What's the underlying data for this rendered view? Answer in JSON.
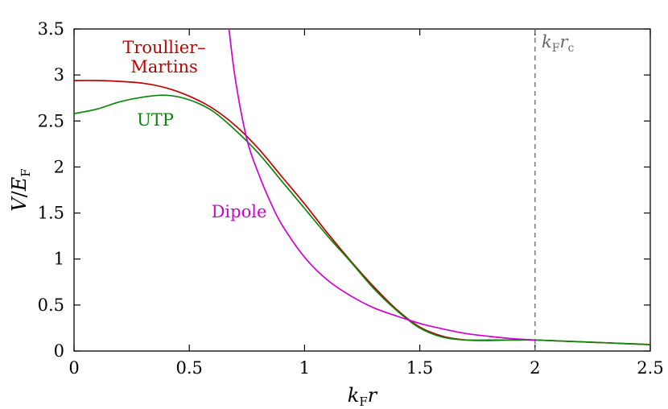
{
  "chart_data": {
    "type": "line",
    "title": "",
    "xlabel": {
      "main": "k",
      "sub": "F",
      "tail": "r"
    },
    "ylabel": {
      "main": "V",
      "sep": "/",
      "main2": "E",
      "sub": "F"
    },
    "xlim": [
      0,
      2.5
    ],
    "ylim": [
      0,
      3.5
    ],
    "xticks": [
      0,
      0.5,
      1,
      1.5,
      2,
      2.5
    ],
    "xtick_labels": [
      "0",
      "0.5",
      "1",
      "1.5",
      "2",
      "2.5"
    ],
    "yticks": [
      0,
      0.5,
      1,
      1.5,
      2,
      2.5,
      3,
      3.5
    ],
    "ytick_labels": [
      "0",
      "0.5",
      "1",
      "1.5",
      "2",
      "2.5",
      "3",
      "3.5"
    ],
    "grid": false,
    "legend": "none (series labeled inline)",
    "series": [
      {
        "name": "Troullier–Martins",
        "label_lines": [
          "Troullier–",
          "Martins"
        ],
        "color": "#c00000",
        "x": [
          0,
          0.1,
          0.2,
          0.3,
          0.4,
          0.5,
          0.6,
          0.7,
          0.8,
          0.9,
          1.0,
          1.1,
          1.2,
          1.3,
          1.4,
          1.5,
          1.6,
          1.7,
          1.8,
          1.9,
          2.0,
          2.1,
          2.2,
          2.3,
          2.4,
          2.5
        ],
        "y": [
          2.94,
          2.94,
          2.93,
          2.91,
          2.86,
          2.77,
          2.64,
          2.45,
          2.2,
          1.9,
          1.6,
          1.28,
          0.98,
          0.7,
          0.45,
          0.26,
          0.16,
          0.12,
          0.115,
          0.12,
          0.12,
          0.11,
          0.1,
          0.09,
          0.08,
          0.07
        ]
      },
      {
        "name": "UTP",
        "label_lines": [
          "UTP"
        ],
        "color": "#0a850a",
        "x": [
          0,
          0.1,
          0.2,
          0.3,
          0.4,
          0.5,
          0.6,
          0.7,
          0.8,
          0.9,
          1.0,
          1.1,
          1.2,
          1.3,
          1.4,
          1.5,
          1.6,
          1.7,
          1.8,
          1.9,
          2.0,
          2.1,
          2.2,
          2.3,
          2.4,
          2.5
        ],
        "y": [
          2.58,
          2.63,
          2.71,
          2.76,
          2.78,
          2.73,
          2.61,
          2.4,
          2.15,
          1.85,
          1.55,
          1.25,
          0.97,
          0.68,
          0.44,
          0.25,
          0.15,
          0.12,
          0.12,
          0.12,
          0.12,
          0.11,
          0.1,
          0.09,
          0.08,
          0.07
        ]
      },
      {
        "name": "Dipole",
        "label_lines": [
          "Dipole"
        ],
        "color": "#d000d0",
        "x": [
          0.67,
          0.7,
          0.75,
          0.8,
          0.85,
          0.9,
          1.0,
          1.1,
          1.2,
          1.3,
          1.4,
          1.5,
          1.6,
          1.7,
          1.8,
          1.9,
          2.0
        ],
        "y": [
          3.55,
          2.95,
          2.3,
          1.93,
          1.63,
          1.38,
          1.02,
          0.77,
          0.6,
          0.47,
          0.38,
          0.3,
          0.24,
          0.19,
          0.16,
          0.135,
          0.12
        ]
      }
    ],
    "vline": {
      "x": 2.0,
      "style": "dashed",
      "color": "#666666",
      "label": {
        "main": "k",
        "sub": "F",
        "main2": "r",
        "sub2": "c"
      }
    }
  }
}
